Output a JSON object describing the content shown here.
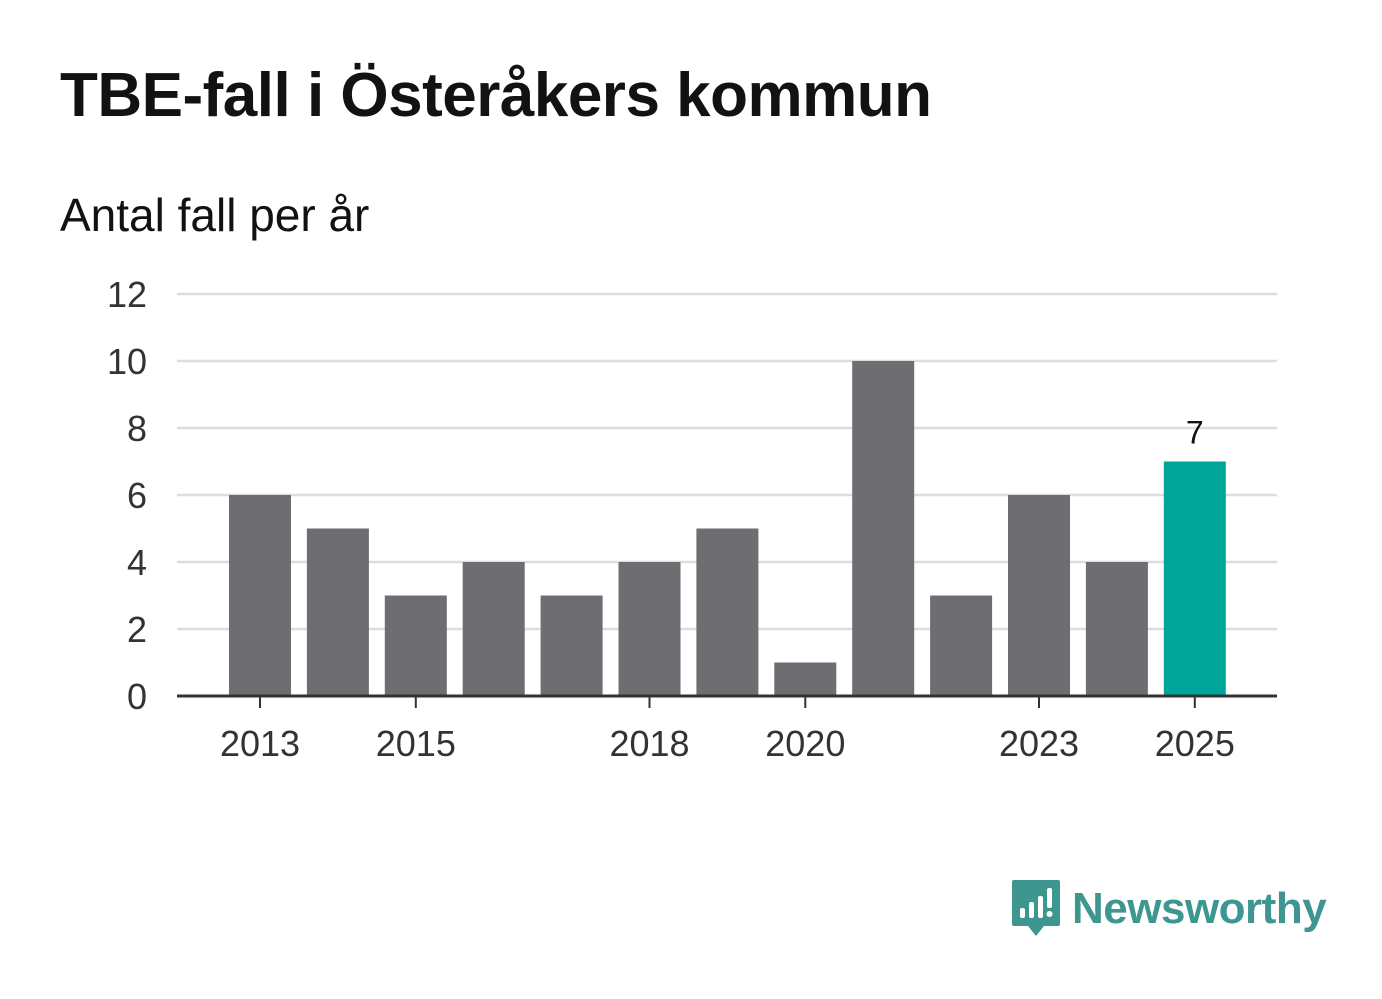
{
  "header": {
    "title": "TBE-fall i Österåkers kommun",
    "subtitle": "Antal fall per år"
  },
  "brand": {
    "name": "Newsworthy",
    "icon": "newsworthy-logo-icon",
    "color": "#3d9690"
  },
  "colors": {
    "bar": "#6e6d72",
    "highlight": "#00a59a",
    "grid": "#dddddd",
    "axis": "#333333"
  },
  "chart_data": {
    "type": "bar",
    "title": "TBE-fall i Österåkers kommun",
    "subtitle": "Antal fall per år",
    "xlabel": "",
    "ylabel": "",
    "categories": [
      "2013",
      "2014",
      "2015",
      "2016",
      "2017",
      "2018",
      "2019",
      "2020",
      "2021",
      "2022",
      "2023",
      "2024",
      "2025"
    ],
    "values": [
      6,
      5,
      3,
      4,
      3,
      4,
      5,
      1,
      10,
      3,
      6,
      4,
      7
    ],
    "x_tick_labels": [
      "2013",
      "2015",
      "2018",
      "2020",
      "2023",
      "2025"
    ],
    "ylim": [
      0,
      12
    ],
    "y_ticks": [
      0,
      2,
      4,
      6,
      8,
      10,
      12
    ],
    "highlight_category": "2025",
    "annotations": [
      {
        "category": "2025",
        "text": "7"
      }
    ],
    "grid": true
  }
}
